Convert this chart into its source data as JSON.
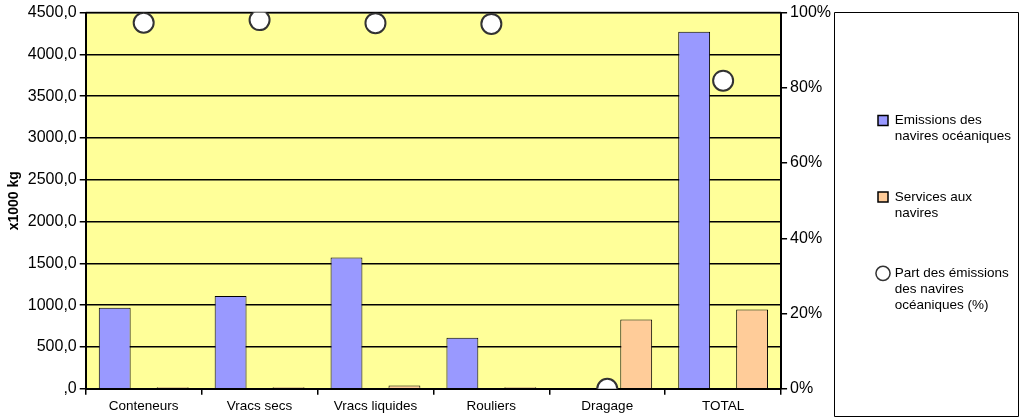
{
  "chart_data": {
    "type": "bar",
    "ylabel": "x1000 kg",
    "categories": [
      "Conteneurs",
      "Vracs secs",
      "Vracs liquides",
      "Rouliers",
      "Dragage",
      "TOTAL"
    ],
    "series": [
      {
        "name": "Emissions des navires océaniques",
        "color": "#9999ff",
        "values": [
          970,
          1110,
          1570,
          610,
          0,
          4270
        ]
      },
      {
        "name": "Services aux navires",
        "color": "#ffcc99",
        "values": [
          20,
          20,
          40,
          20,
          830,
          950
        ]
      },
      {
        "name": "Part des émissions des navires océaniques (%)",
        "type": "scatter",
        "axis": "y2",
        "color": "#ffffff",
        "values": [
          97.3,
          98,
          97.2,
          97,
          0,
          81.9
        ]
      }
    ],
    "ylim": [
      0,
      4500
    ],
    "yticks": [
      {
        "value": 0,
        "label": ",0"
      },
      {
        "value": 500,
        "label": "500,0"
      },
      {
        "value": 1000,
        "label": "1000,0"
      },
      {
        "value": 1500,
        "label": "1500,0"
      },
      {
        "value": 2000,
        "label": "2000,0"
      },
      {
        "value": 2500,
        "label": "2500,0"
      },
      {
        "value": 3000,
        "label": "3000,0"
      },
      {
        "value": 3500,
        "label": "3500,0"
      },
      {
        "value": 4000,
        "label": "4000,0"
      },
      {
        "value": 4500,
        "label": "4500,0"
      }
    ],
    "y2lim": [
      0,
      100
    ],
    "y2ticks": [
      {
        "value": 0,
        "label": "0%"
      },
      {
        "value": 20,
        "label": "20%"
      },
      {
        "value": 40,
        "label": "40%"
      },
      {
        "value": 60,
        "label": "60%"
      },
      {
        "value": 80,
        "label": "80%"
      },
      {
        "value": 100,
        "label": "100%"
      }
    ],
    "grid": "y",
    "legend": "right",
    "marker": "circle"
  }
}
